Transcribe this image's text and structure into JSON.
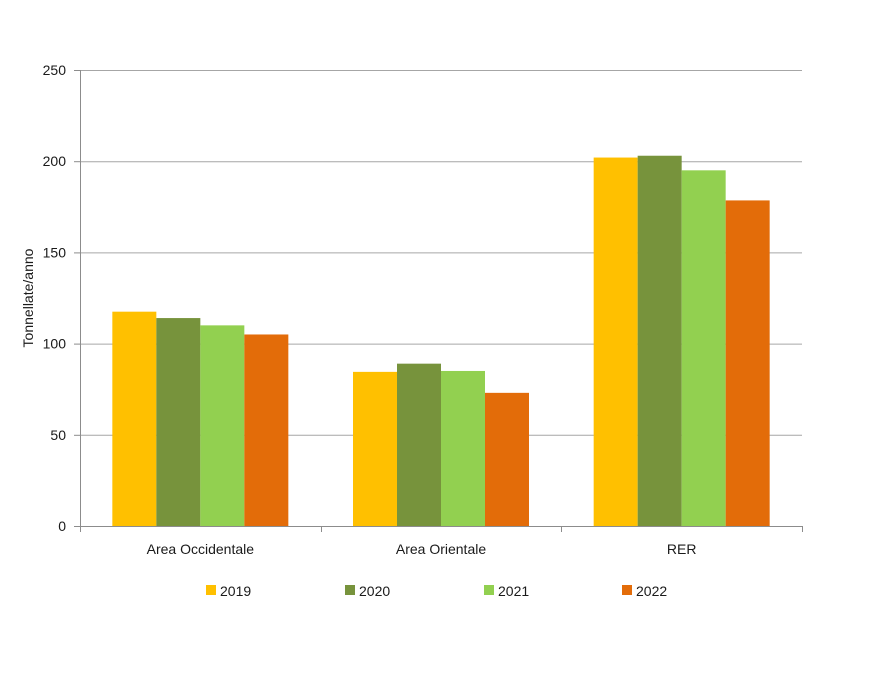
{
  "chart_data": {
    "type": "bar",
    "categories": [
      "Area Occidentale",
      "Area Orientale",
      "RER"
    ],
    "series": [
      {
        "name": "2019",
        "color": "#FFC000",
        "values": [
          117.5,
          84.5,
          202
        ]
      },
      {
        "name": "2020",
        "color": "#77933C",
        "values": [
          114,
          89,
          203
        ]
      },
      {
        "name": "2021",
        "color": "#92D050",
        "values": [
          110,
          85,
          195
        ]
      },
      {
        "name": "2022",
        "color": "#E36C09",
        "values": [
          105,
          73,
          178.5
        ]
      }
    ],
    "ylabel": "Tonnellate/anno",
    "ylim": [
      0,
      250
    ],
    "yticks": [
      0,
      50,
      100,
      150,
      200,
      250
    ],
    "grid": true,
    "legend": "bottom"
  }
}
